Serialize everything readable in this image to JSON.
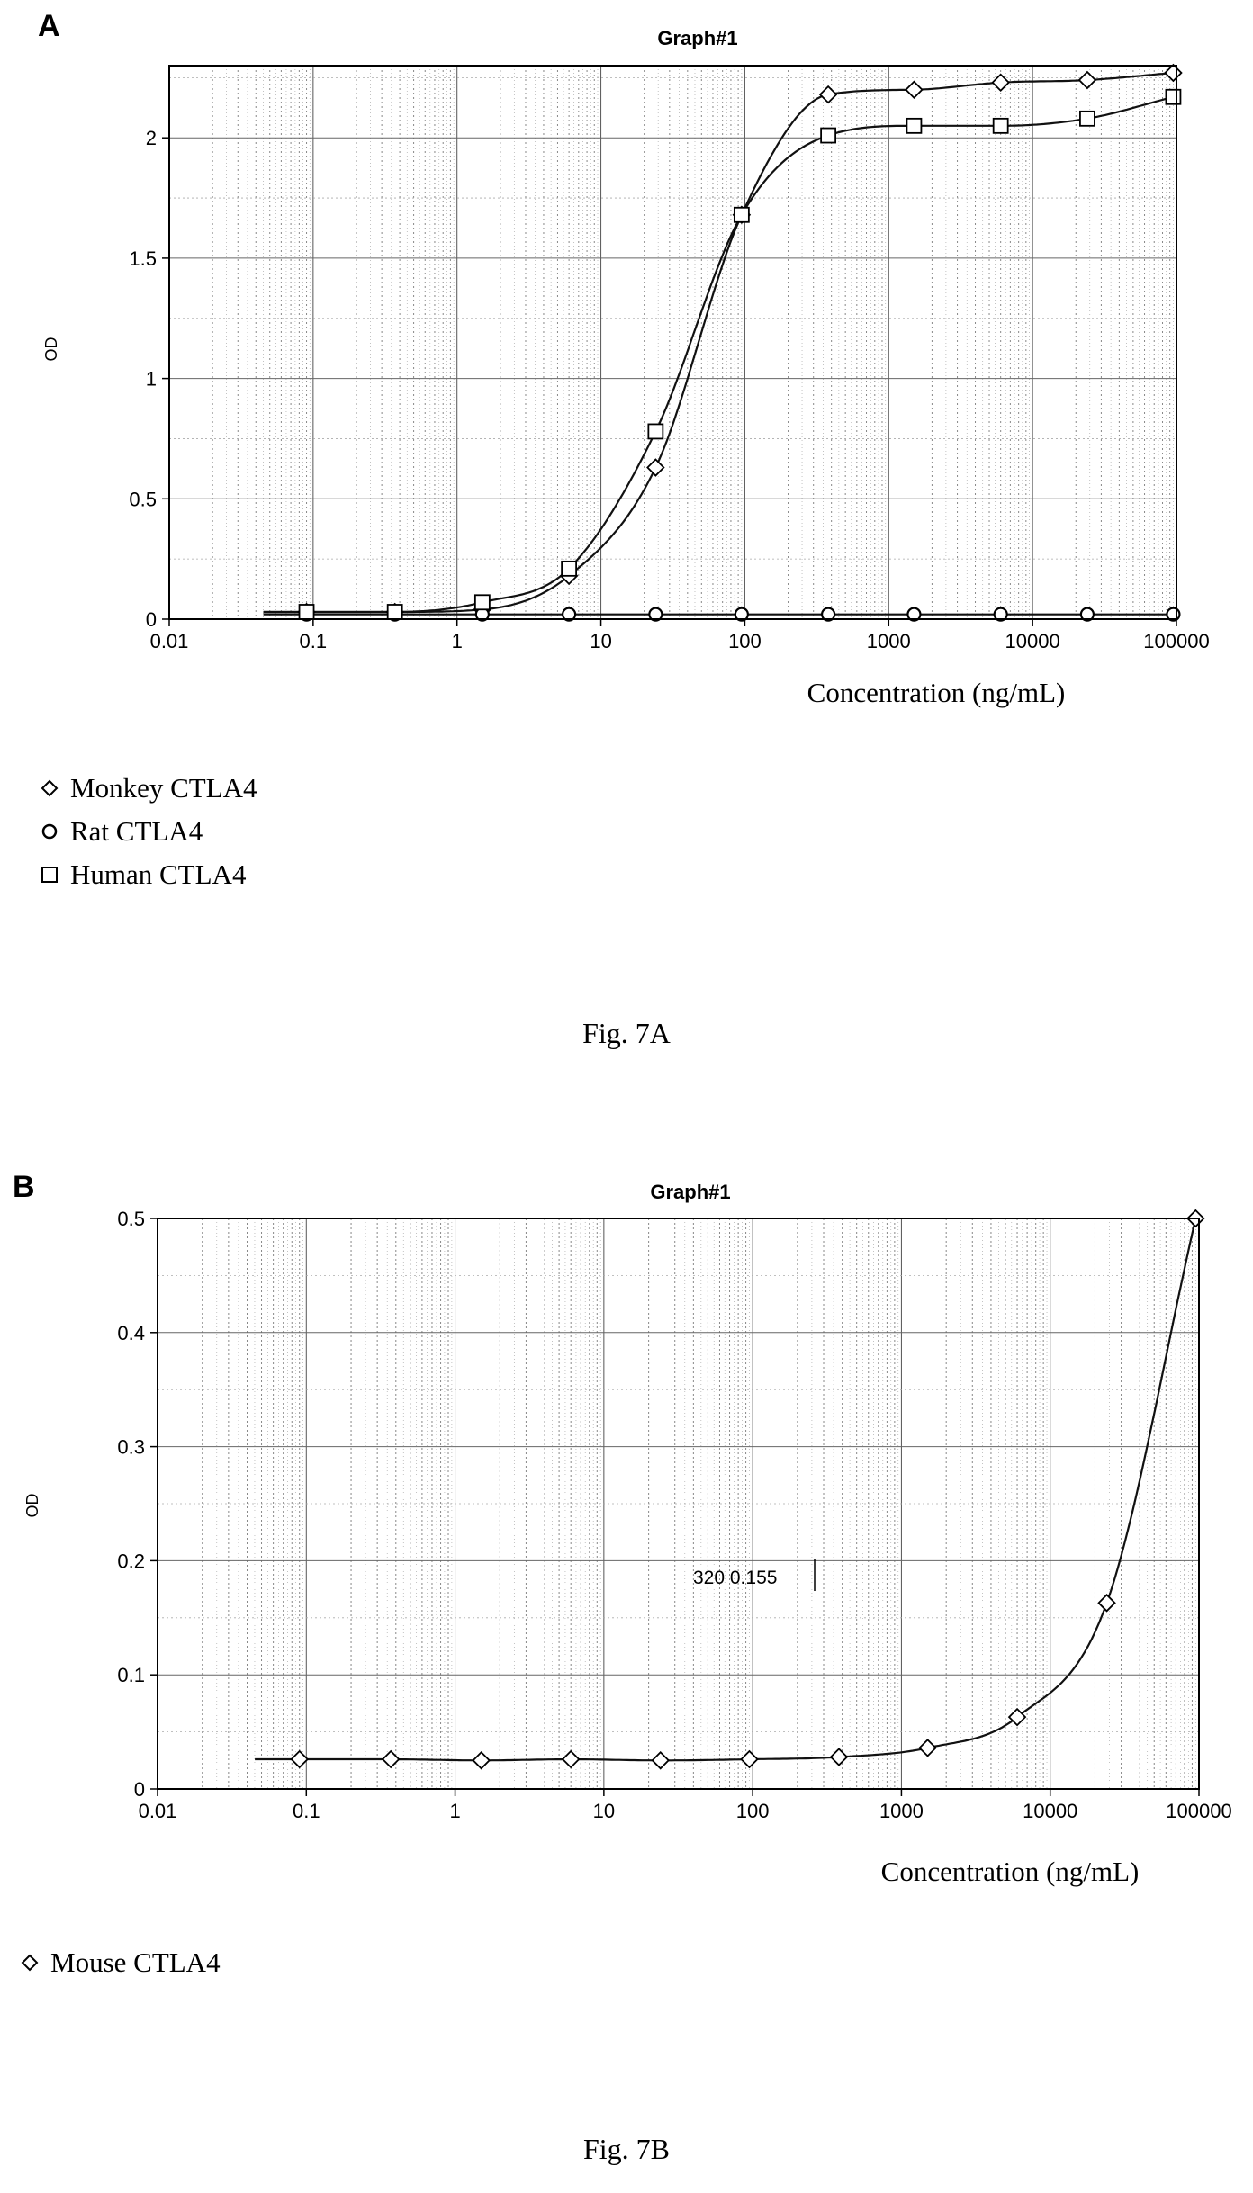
{
  "figure_a": {
    "panel_label": "A",
    "caption": "Fig. 7A",
    "legend": [
      {
        "label": "Monkey CTLA4",
        "marker": "diamond"
      },
      {
        "label": "Rat CTLA4",
        "marker": "circle"
      },
      {
        "label": "Human CTLA4",
        "marker": "square"
      }
    ]
  },
  "figure_b": {
    "panel_label": "B",
    "caption": "Fig. 7B",
    "legend": [
      {
        "label": "Mouse CTLA4",
        "marker": "diamond"
      }
    ]
  },
  "chart_data": [
    {
      "type": "scatter",
      "title": "Graph#1",
      "xlabel": "Concentration (ng/mL)",
      "ylabel": "OD",
      "x_scale": "log",
      "xlim": [
        0.01,
        100000
      ],
      "ylim": [
        0,
        2.3
      ],
      "x_ticks": [
        "0.01",
        "0.1",
        "1",
        "10",
        "100",
        "1000",
        "10000",
        "100000"
      ],
      "y_ticks": [
        "0",
        "0.5",
        "1",
        "1.5",
        "2"
      ],
      "grid": true,
      "legend_position": "bottom-left-below",
      "series": [
        {
          "name": "Monkey CTLA4",
          "marker": "diamond",
          "x": [
            0.09,
            0.37,
            1.5,
            6,
            24,
            95,
            380,
            1500,
            6000,
            24000,
            95000
          ],
          "y": [
            0.03,
            0.03,
            0.04,
            0.18,
            0.63,
            1.68,
            2.18,
            2.2,
            2.23,
            2.24,
            2.27
          ]
        },
        {
          "name": "Rat CTLA4",
          "marker": "circle",
          "x": [
            0.09,
            0.37,
            1.5,
            6,
            24,
            95,
            380,
            1500,
            6000,
            24000,
            95000
          ],
          "y": [
            0.02,
            0.02,
            0.02,
            0.02,
            0.02,
            0.02,
            0.02,
            0.02,
            0.02,
            0.02,
            0.02
          ]
        },
        {
          "name": "Human CTLA4",
          "marker": "square",
          "x": [
            0.09,
            0.37,
            1.5,
            6,
            24,
            95,
            380,
            1500,
            6000,
            24000,
            95000
          ],
          "y": [
            0.03,
            0.03,
            0.07,
            0.21,
            0.78,
            1.68,
            2.01,
            2.05,
            2.05,
            2.08,
            2.17
          ]
        }
      ]
    },
    {
      "type": "scatter",
      "title": "Graph#1",
      "xlabel": "Concentration (ng/mL)",
      "ylabel": "OD",
      "x_scale": "log",
      "xlim": [
        0.01,
        100000
      ],
      "ylim": [
        0,
        0.5
      ],
      "x_ticks": [
        "0.01",
        "0.1",
        "1",
        "10",
        "100",
        "1000",
        "10000",
        "100000"
      ],
      "y_ticks": [
        "0",
        "0.1",
        "0.2",
        "0.3",
        "0.4",
        "0.5"
      ],
      "grid": true,
      "legend_position": "bottom-left-below",
      "annotation": "320  0.155",
      "series": [
        {
          "name": "Mouse CTLA4",
          "marker": "diamond",
          "x": [
            0.09,
            0.37,
            1.5,
            6,
            24,
            95,
            380,
            1500,
            6000,
            24000,
            95000
          ],
          "y": [
            0.026,
            0.026,
            0.025,
            0.026,
            0.025,
            0.026,
            0.028,
            0.036,
            0.063,
            0.163,
            0.5
          ]
        }
      ]
    }
  ]
}
